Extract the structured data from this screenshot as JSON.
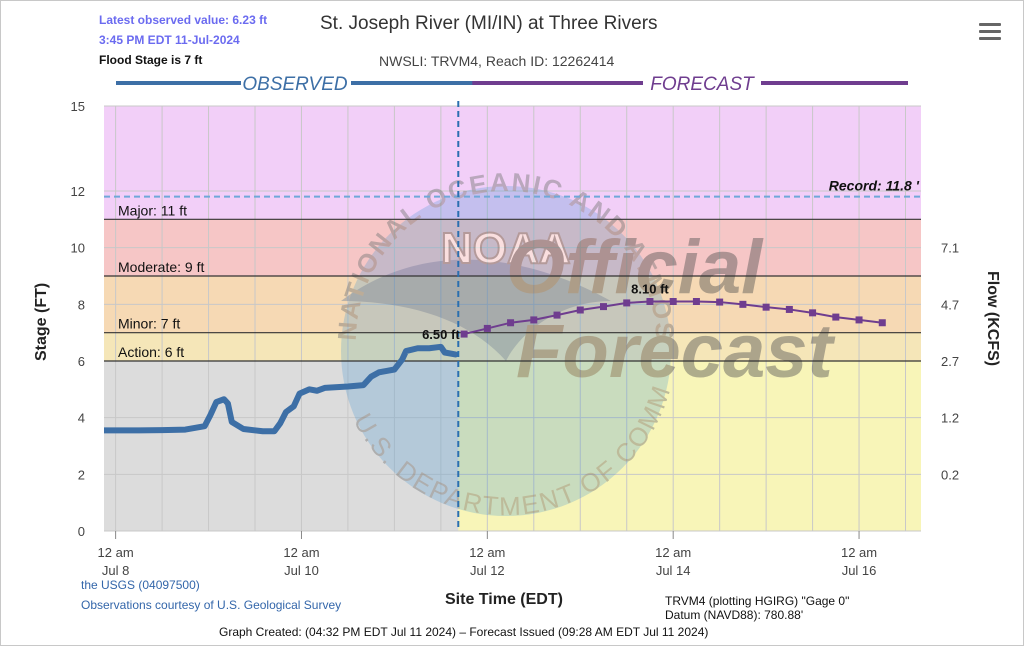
{
  "header": {
    "latest_value": "Latest observed value: 6.23 ft",
    "latest_time": "3:45 PM EDT 11-Jul-2024",
    "flood_stage": "Flood Stage is 7 ft",
    "title": "St. Joseph River (MI/IN) at Three Rivers",
    "subtitle": "NWSLI: TRVM4, Reach ID: 12262414",
    "menu_icon": "hamburger-menu-icon"
  },
  "footer": {
    "source": "the USGS (04097500)",
    "courtesy": "Observations courtesy of U.S. Geological Survey",
    "datum": "TRVM4 (plotting HGIRG) \"Gage 0\" Datum (NAVD88): 780.88'",
    "created": "Graph Created: (04:32 PM EDT Jul 11 2024) – Forecast Issued (09:28 AM EDT Jul 11 2024)"
  },
  "watermark": {
    "ring_top": "NATIONAL OCEANIC AND ATMOSPHERIC ADMINISTRATION",
    "ring_bottom": "U.S. DEPARTMENT OF COMMERCE",
    "logo": "NOAA",
    "line1": "Official",
    "line2": "Forecast"
  },
  "colors": {
    "observed": "#3d6fa6",
    "forecast": "#6f3d8f",
    "record_band": "#f2cff8",
    "major_band": "#f6c6c6",
    "moderate_band": "#f6d9b4",
    "minor_band": "#f5e6b8",
    "action_band": "#f8f5b8",
    "normal_band": "#dcdcdc"
  },
  "chart_data": {
    "type": "line",
    "title": "St. Joseph River (MI/IN) at Three Rivers",
    "subtitle": "NWSLI: TRVM4, Reach ID: 12262414",
    "xlabel": "Site Time (EDT)",
    "ylabel": "Stage (FT)",
    "y2label": "Flow (KCFS)",
    "ylim": [
      0,
      15
    ],
    "xlim": [
      "2024-07-07T21:00",
      "2024-07-16T16:00"
    ],
    "observed_label": "OBSERVED",
    "forecast_label": "FORECAST",
    "now": "2024-07-11T16:30",
    "y_ticks": [
      "0",
      "2",
      "4",
      "6",
      "8",
      "10",
      "12",
      "15"
    ],
    "y_tick_values": [
      0,
      2,
      4,
      6,
      8,
      10,
      12,
      15
    ],
    "y2_ticks": [
      "0.2",
      "1.2",
      "2.7",
      "4.7",
      "7.1"
    ],
    "y2_tick_stage": [
      2,
      4,
      6,
      8,
      10
    ],
    "x_ticks": [
      {
        "t": "2024-07-08T00:00",
        "line1": "12 am",
        "line2": "Jul 8"
      },
      {
        "t": "2024-07-10T00:00",
        "line1": "12 am",
        "line2": "Jul 10"
      },
      {
        "t": "2024-07-12T00:00",
        "line1": "12 am",
        "line2": "Jul 12"
      },
      {
        "t": "2024-07-14T00:00",
        "line1": "12 am",
        "line2": "Jul 14"
      },
      {
        "t": "2024-07-16T00:00",
        "line1": "12 am",
        "line2": "Jul 16"
      }
    ],
    "grid": true,
    "thresholds": [
      {
        "name": "Action",
        "label": "Action: 6 ft",
        "value": 6
      },
      {
        "name": "Minor",
        "label": "Minor: 7 ft",
        "value": 7
      },
      {
        "name": "Moderate",
        "label": "Moderate: 9 ft",
        "value": 9
      },
      {
        "name": "Major",
        "label": "Major: 11 ft",
        "value": 11
      }
    ],
    "record": {
      "label": "Record: 11.8 '",
      "value": 11.8
    },
    "annotations": [
      {
        "text": "6.50 ft",
        "t": "2024-07-11T12:00",
        "y": 6.5
      },
      {
        "text": "8.10 ft",
        "t": "2024-07-13T18:00",
        "y": 8.1
      }
    ],
    "series": [
      {
        "name": "OBSERVED",
        "points": [
          [
            "2024-07-07T21:00",
            3.55
          ],
          [
            "2024-07-08T06:00",
            3.55
          ],
          [
            "2024-07-08T12:00",
            3.56
          ],
          [
            "2024-07-08T18:00",
            3.58
          ],
          [
            "2024-07-08T23:00",
            3.7
          ],
          [
            "2024-07-09T00:30",
            4.1
          ],
          [
            "2024-07-09T02:00",
            4.55
          ],
          [
            "2024-07-09T04:00",
            4.65
          ],
          [
            "2024-07-09T05:00",
            4.5
          ],
          [
            "2024-07-09T06:00",
            3.85
          ],
          [
            "2024-07-09T09:00",
            3.6
          ],
          [
            "2024-07-09T14:00",
            3.52
          ],
          [
            "2024-07-09T17:00",
            3.52
          ],
          [
            "2024-07-09T18:30",
            3.8
          ],
          [
            "2024-07-09T20:00",
            4.2
          ],
          [
            "2024-07-09T22:00",
            4.4
          ],
          [
            "2024-07-09T23:30",
            4.85
          ],
          [
            "2024-07-10T02:00",
            5.0
          ],
          [
            "2024-07-10T04:00",
            4.95
          ],
          [
            "2024-07-10T06:00",
            5.05
          ],
          [
            "2024-07-10T12:00",
            5.1
          ],
          [
            "2024-07-10T16:00",
            5.15
          ],
          [
            "2024-07-10T18:00",
            5.45
          ],
          [
            "2024-07-10T20:00",
            5.6
          ],
          [
            "2024-07-10T22:00",
            5.65
          ],
          [
            "2024-07-11T00:00",
            5.7
          ],
          [
            "2024-07-11T02:00",
            6.05
          ],
          [
            "2024-07-11T03:00",
            6.35
          ],
          [
            "2024-07-11T06:00",
            6.45
          ],
          [
            "2024-07-11T09:00",
            6.45
          ],
          [
            "2024-07-11T12:00",
            6.5
          ],
          [
            "2024-07-11T13:00",
            6.3
          ],
          [
            "2024-07-11T15:45",
            6.23
          ]
        ]
      },
      {
        "name": "FORECAST",
        "points": [
          [
            "2024-07-11T18:00",
            6.95
          ],
          [
            "2024-07-12T00:00",
            7.15
          ],
          [
            "2024-07-12T06:00",
            7.35
          ],
          [
            "2024-07-12T12:00",
            7.45
          ],
          [
            "2024-07-12T18:00",
            7.62
          ],
          [
            "2024-07-13T00:00",
            7.8
          ],
          [
            "2024-07-13T06:00",
            7.92
          ],
          [
            "2024-07-13T12:00",
            8.05
          ],
          [
            "2024-07-13T18:00",
            8.1
          ],
          [
            "2024-07-14T00:00",
            8.1
          ],
          [
            "2024-07-14T06:00",
            8.1
          ],
          [
            "2024-07-14T12:00",
            8.08
          ],
          [
            "2024-07-14T18:00",
            8.0
          ],
          [
            "2024-07-15T00:00",
            7.9
          ],
          [
            "2024-07-15T06:00",
            7.82
          ],
          [
            "2024-07-15T12:00",
            7.7
          ],
          [
            "2024-07-15T18:00",
            7.55
          ],
          [
            "2024-07-16T00:00",
            7.45
          ],
          [
            "2024-07-16T06:00",
            7.35
          ]
        ]
      }
    ]
  }
}
